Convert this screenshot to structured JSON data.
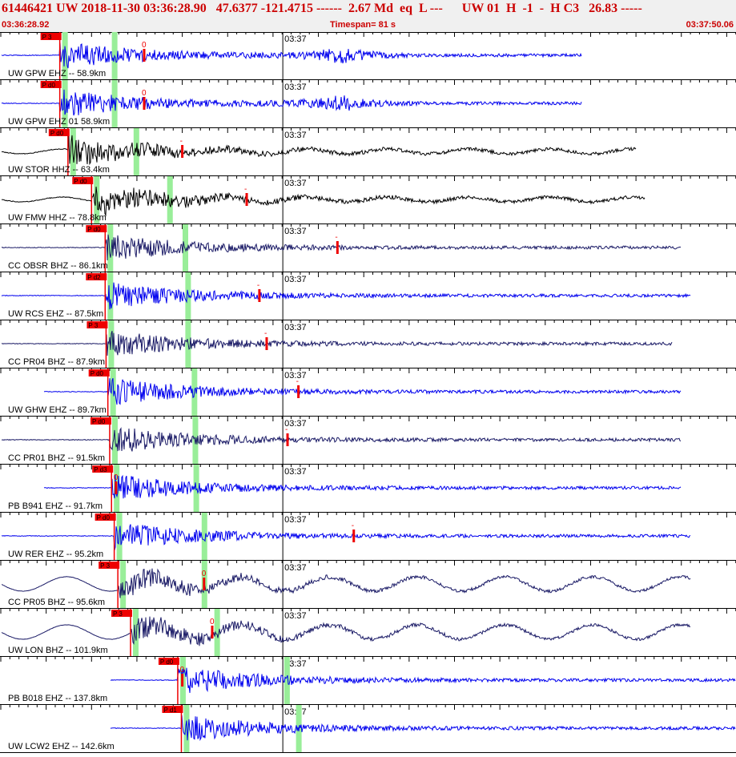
{
  "header": {
    "line1": "61446421 UW 2018-11-30 03:36:28.90   47.6377 -121.4715 ------  2.67 Md  eq  L ---      UW 01  H  -1  -  H C3   26.83 -----",
    "start_time": "03:36:28.92",
    "timespan": "Timespan=  81 s",
    "end_time": "03:37:50.06"
  },
  "minute_label": "03:37",
  "colors": {
    "header_text": "#cc0000",
    "blue_trace": "#0000ee",
    "black_trace": "#000000",
    "dark_trace": "#1a1a66",
    "pick_box": "#ee0000",
    "window_band": "#99ee99"
  },
  "chart_data": {
    "type": "line",
    "title": "",
    "xlabel": "",
    "ylabel": "",
    "xlim": [
      0,
      81.14
    ],
    "grid": true,
    "channels": [
      {
        "label": "UW GPW EHZ -- 58.9km",
        "color": "blue",
        "pick": "P 3",
        "p": 6.5,
        "coda": 12.5,
        "s": 15.8,
        "end": 64,
        "s_marker": "0",
        "shape": "a"
      },
      {
        "label": "UW GPW EHZ 01 58.9km",
        "color": "blue",
        "pick": "P d0",
        "p": 6.5,
        "coda": 12.5,
        "s": 15.8,
        "end": 64,
        "s_marker": "0",
        "shape": "a"
      },
      {
        "label": "UW STOR HHZ -- 63.4km",
        "color": "black",
        "pick": "P d0",
        "p": 7.4,
        "coda": 14.9,
        "s": 20.0,
        "end": 70,
        "s_marker": "-",
        "shape": "b"
      },
      {
        "label": "UW FMW HHZ -- 78.8km",
        "color": "black",
        "pick": "P d0",
        "p": 10.0,
        "coda": 18.6,
        "s": 27.1,
        "end": 71,
        "s_marker": "-",
        "shape": "b"
      },
      {
        "label": "CC OBSR BHZ -- 86.1km",
        "color": "dark",
        "pick": "P d0",
        "p": 11.5,
        "coda": 20.3,
        "s": 37.1,
        "end": 75,
        "s_marker": "-",
        "shape": "c"
      },
      {
        "label": "UW RCS EHZ -- 87.5km",
        "color": "blue",
        "pick": "P d2",
        "p": 11.5,
        "coda": 20.6,
        "s": 28.5,
        "end": 76,
        "s_marker": "-",
        "shape": "c"
      },
      {
        "label": "CC PR04 BHZ -- 87.9km",
        "color": "dark",
        "pick": "P 3",
        "p": 11.6,
        "coda": 20.6,
        "s": 29.3,
        "end": 74,
        "s_marker": "-",
        "shape": "c"
      },
      {
        "label": "UW GHW EHZ -- 89.7km",
        "color": "blue",
        "pick": "P d0",
        "p": 11.8,
        "coda": 21.3,
        "s": 32.8,
        "end": 75,
        "s_marker": "-",
        "shape": "d"
      },
      {
        "label": "CC PR01 BHZ -- 91.5km",
        "color": "dark",
        "pick": "P d0",
        "p": 12.0,
        "coda": 21.4,
        "s": 31.6,
        "end": 75,
        "s_marker": "-",
        "shape": "c"
      },
      {
        "label": "PB B941 EHZ -- 91.7km",
        "color": "blue",
        "pick": "P d3",
        "p": 12.2,
        "coda": 21.5,
        "s": 12.7,
        "end": 75,
        "s_marker": "0",
        "shape": "d"
      },
      {
        "label": "UW RER EHZ -- 95.2km",
        "color": "blue",
        "pick": "P d0",
        "p": 12.5,
        "coda": 22.4,
        "s": 38.9,
        "end": 76,
        "s_marker": "-",
        "shape": "c"
      },
      {
        "label": "CC PR05 BHZ -- 95.6km",
        "color": "dark",
        "pick": "P 3",
        "p": 12.9,
        "coda": 22.4,
        "s": 22.4,
        "end": 76,
        "s_marker": "0",
        "shape": "e"
      },
      {
        "label": "UW LON BHZ -- 101.9km",
        "color": "dark",
        "pick": "P 3",
        "p": 14.3,
        "coda": 23.8,
        "s": 23.3,
        "end": 76,
        "s_marker": "0",
        "shape": "e"
      },
      {
        "label": "PB B018 EHZ -- 137.8km",
        "color": "blue",
        "pick": "P d0",
        "p": 19.5,
        "coda": 31.5,
        "s": 20.0,
        "end": 81,
        "s_marker": "0",
        "shape": "f"
      },
      {
        "label": "UW LCW2 EHZ -- 142.6km",
        "color": "blue",
        "pick": "P d1",
        "p": 19.9,
        "coda": 32.8,
        "s": 0,
        "end": 81,
        "s_marker": "",
        "shape": "f"
      }
    ]
  }
}
